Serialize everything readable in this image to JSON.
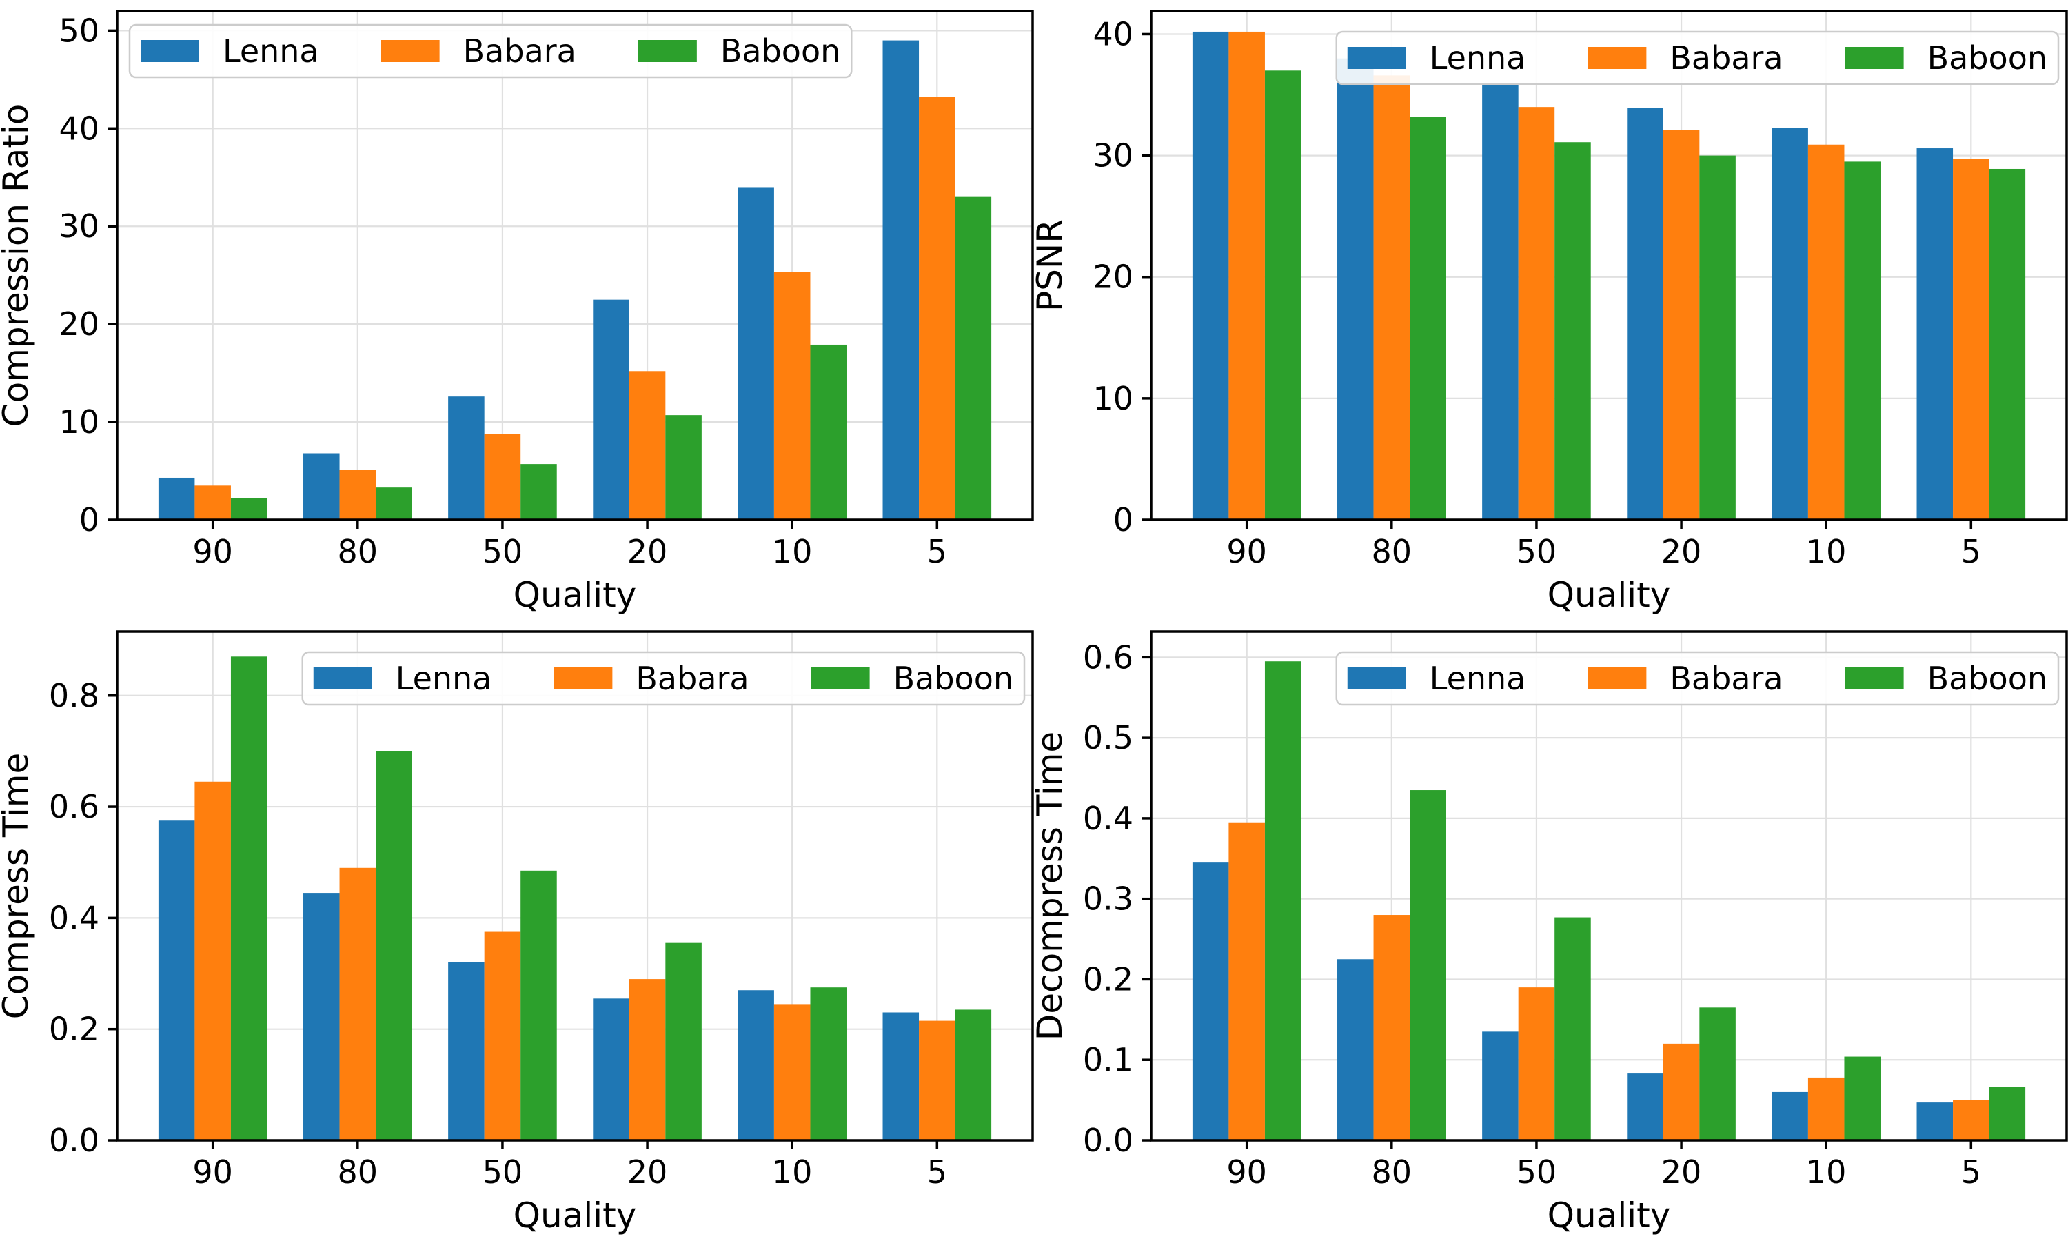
{
  "figure": {
    "background": "#ffffff",
    "text_color": "#000000",
    "grid_color": "#e0e0e0",
    "spine_color": "#000000",
    "legend_border_color": "#cccccc",
    "series_names": [
      "Lenna",
      "Babara",
      "Baboon"
    ],
    "series_colors": [
      "#1f77b4",
      "#ff7f0e",
      "#2ca02c"
    ]
  },
  "chart_data": [
    {
      "id": "compression-ratio",
      "type": "bar",
      "title": "",
      "xlabel": "Quality",
      "ylabel": "Compression Ratio",
      "categories": [
        "90",
        "80",
        "50",
        "20",
        "10",
        "5"
      ],
      "series": [
        {
          "name": "Lenna",
          "color": "#1f77b4",
          "values": [
            4.3,
            6.8,
            12.6,
            22.5,
            34.0,
            49.0
          ]
        },
        {
          "name": "Babara",
          "color": "#ff7f0e",
          "values": [
            3.5,
            5.1,
            8.8,
            15.2,
            25.3,
            43.2
          ]
        },
        {
          "name": "Baboon",
          "color": "#2ca02c",
          "values": [
            2.25,
            3.3,
            5.7,
            10.7,
            17.9,
            33.0
          ]
        }
      ],
      "ylim": [
        0,
        52.0
      ],
      "ytick_values": [
        0,
        10,
        20,
        30,
        40,
        50
      ],
      "ytick_labels": [
        "0",
        "10",
        "20",
        "30",
        "40",
        "50"
      ],
      "legend_position": "upper-left",
      "grid": true
    },
    {
      "id": "psnr",
      "type": "bar",
      "title": "",
      "xlabel": "Quality",
      "ylabel": "PSNR",
      "categories": [
        "90",
        "80",
        "50",
        "20",
        "10",
        "5"
      ],
      "series": [
        {
          "name": "Lenna",
          "color": "#1f77b4",
          "values": [
            40.2,
            38.0,
            35.9,
            33.9,
            32.3,
            30.6
          ]
        },
        {
          "name": "Babara",
          "color": "#ff7f0e",
          "values": [
            40.2,
            36.6,
            34.0,
            32.1,
            30.9,
            29.7
          ]
        },
        {
          "name": "Baboon",
          "color": "#2ca02c",
          "values": [
            37.0,
            33.2,
            31.1,
            30.0,
            29.5,
            28.9
          ]
        }
      ],
      "ylim": [
        0,
        41.9
      ],
      "ytick_values": [
        0,
        10,
        20,
        30,
        40
      ],
      "ytick_labels": [
        "0",
        "10",
        "20",
        "30",
        "40"
      ],
      "legend_position": "upper-right",
      "grid": true
    },
    {
      "id": "compress-time",
      "type": "bar",
      "title": "",
      "xlabel": "Quality",
      "ylabel": "Compress Time",
      "categories": [
        "90",
        "80",
        "50",
        "20",
        "10",
        "5"
      ],
      "series": [
        {
          "name": "Lenna",
          "color": "#1f77b4",
          "values": [
            0.575,
            0.445,
            0.32,
            0.255,
            0.27,
            0.23
          ]
        },
        {
          "name": "Babara",
          "color": "#ff7f0e",
          "values": [
            0.645,
            0.49,
            0.375,
            0.29,
            0.245,
            0.215
          ]
        },
        {
          "name": "Baboon",
          "color": "#2ca02c",
          "values": [
            0.87,
            0.7,
            0.485,
            0.355,
            0.275,
            0.235
          ]
        }
      ],
      "ylim": [
        0,
        0.915
      ],
      "ytick_values": [
        0,
        0.2,
        0.4,
        0.6,
        0.8
      ],
      "ytick_labels": [
        "0.0",
        "0.2",
        "0.4",
        "0.6",
        "0.8"
      ],
      "legend_position": "upper-right",
      "grid": true
    },
    {
      "id": "decompress-time",
      "type": "bar",
      "title": "",
      "xlabel": "Quality",
      "ylabel": "Decompress Time",
      "categories": [
        "90",
        "80",
        "50",
        "20",
        "10",
        "5"
      ],
      "series": [
        {
          "name": "Lenna",
          "color": "#1f77b4",
          "values": [
            0.345,
            0.225,
            0.135,
            0.083,
            0.06,
            0.047
          ]
        },
        {
          "name": "Babara",
          "color": "#ff7f0e",
          "values": [
            0.395,
            0.28,
            0.19,
            0.12,
            0.078,
            0.05
          ]
        },
        {
          "name": "Baboon",
          "color": "#2ca02c",
          "values": [
            0.595,
            0.435,
            0.277,
            0.165,
            0.104,
            0.066
          ]
        }
      ],
      "ylim": [
        0,
        0.632
      ],
      "ytick_values": [
        0,
        0.1,
        0.2,
        0.3,
        0.4,
        0.5,
        0.6
      ],
      "ytick_labels": [
        "0.0",
        "0.1",
        "0.2",
        "0.3",
        "0.4",
        "0.5",
        "0.6"
      ],
      "legend_position": "upper-right",
      "grid": true
    }
  ]
}
